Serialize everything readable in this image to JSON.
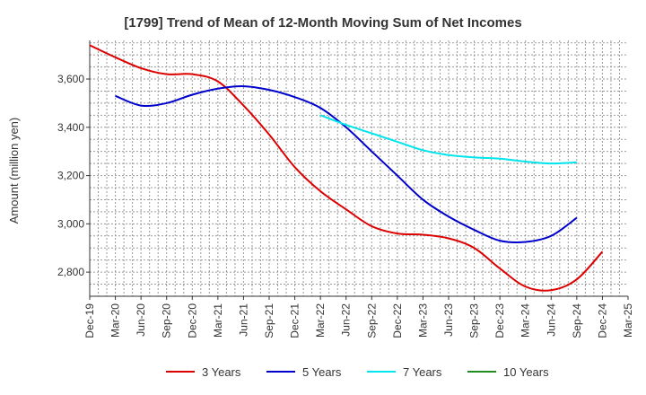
{
  "chart_data": {
    "type": "line",
    "title": "[1799]  Trend of Mean of 12-Month Moving Sum of Net Incomes",
    "xlabel": "",
    "ylabel": "Amount (million yen)",
    "ylim": [
      2700,
      3760
    ],
    "y_ticks": [
      2800,
      3000,
      3200,
      3400,
      3600
    ],
    "y_tick_labels": [
      "2,800",
      "3,000",
      "3,200",
      "3,400",
      "3,600"
    ],
    "x_tick_labels": [
      "Dec-19",
      "Mar-20",
      "Jun-20",
      "Sep-20",
      "Dec-20",
      "Mar-21",
      "Jun-21",
      "Sep-21",
      "Dec-21",
      "Mar-22",
      "Jun-22",
      "Sep-22",
      "Dec-22",
      "Mar-23",
      "Jun-23",
      "Sep-23",
      "Dec-23",
      "Mar-24",
      "Jun-24",
      "Sep-24",
      "Dec-24",
      "Mar-25"
    ],
    "grid": true,
    "legend_position": "bottom",
    "series": [
      {
        "name": "3 Years",
        "color": "#dd0000",
        "start_index": 0,
        "values": [
          3740,
          3690,
          3645,
          3620,
          3620,
          3590,
          3490,
          3370,
          3235,
          3135,
          3060,
          2990,
          2960,
          2955,
          2940,
          2900,
          2815,
          2740,
          2725,
          2770,
          2885
        ]
      },
      {
        "name": "5 Years",
        "color": "#0000cc",
        "start_index": 1,
        "values": [
          3530,
          3490,
          3500,
          3535,
          3560,
          3570,
          3555,
          3525,
          3480,
          3400,
          3300,
          3200,
          3100,
          3030,
          2975,
          2930,
          2925,
          2950,
          3025
        ]
      },
      {
        "name": "7 Years",
        "color": "#00e5ee",
        "start_index": 9,
        "values": [
          3450,
          3410,
          3375,
          3340,
          3305,
          3285,
          3275,
          3270,
          3258,
          3250,
          3255
        ]
      },
      {
        "name": "10 Years",
        "color": "#228b22",
        "start_index": 0,
        "values": []
      }
    ]
  }
}
